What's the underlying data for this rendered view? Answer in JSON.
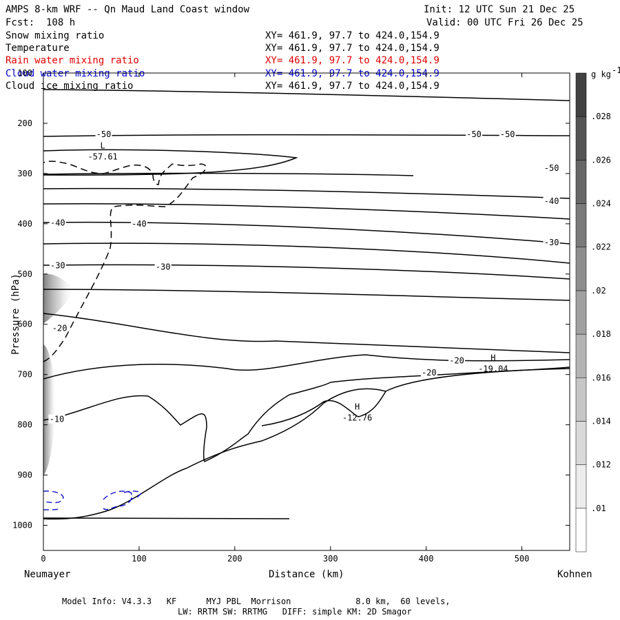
{
  "header": {
    "title": "AMPS 8-km WRF -- Qn Maud Land Coast window",
    "init": "Init: 12 UTC Sun 21 Dec 25",
    "fcst": "Fcst:  108 h",
    "valid": "Valid: 00 UTC Fri 26 Dec 25"
  },
  "fields": [
    {
      "name": "Snow mixing ratio",
      "xy": "XY= 461.9, 97.7 to 424.0,154.9",
      "color": "#000000"
    },
    {
      "name": "Temperature",
      "xy": "XY= 461.9, 97.7 to 424.0,154.9",
      "color": "#000000"
    },
    {
      "name": "Rain water mixing ratio",
      "xy": "XY= 461.9, 97.7 to 424.0,154.9",
      "color": "#e00000"
    },
    {
      "name": "Cloud water mixing ratio",
      "xy": "XY= 461.9, 97.7 to 424.0,154.9",
      "color": "#0000cc"
    },
    {
      "name": "Cloud ice mixing ratio",
      "xy": "XY= 461.9, 97.7 to 424.0,154.9",
      "color": "#000000"
    }
  ],
  "footer": {
    "model": "Model Info: V4.3.3   KF      MYJ PBL  Morrison             8.0 km,  60 levels,",
    "physics": "LW: RRTM SW: RRTMG   DIFF: simple KM: 2D Smagor"
  },
  "chart_data": {
    "type": "contour",
    "xlabel": "Distance (km)",
    "ylabel": "Pressure (hPa)",
    "xlim": [
      0,
      550
    ],
    "ylim": [
      1050,
      100
    ],
    "xticks": [
      0,
      100,
      200,
      300,
      400,
      500
    ],
    "yticks": [
      100,
      200,
      300,
      400,
      500,
      600,
      700,
      800,
      900,
      1000
    ],
    "left_location": "Neumayer",
    "right_location": "Kohnen",
    "colorbar": {
      "unit": "g kg",
      "unit_exp": "-1",
      "ticks": [
        ".01",
        ".012",
        ".014",
        ".016",
        ".018",
        ".02",
        ".022",
        ".024",
        ".026",
        ".028"
      ]
    },
    "contour_labels": [
      {
        "text": "-50",
        "x": 63,
        "p": 222
      },
      {
        "text": "-50",
        "x": 450,
        "p": 222
      },
      {
        "text": "-50",
        "x": 485,
        "p": 222
      },
      {
        "text": "-50",
        "x": 531,
        "p": 289
      },
      {
        "text": "-40",
        "x": 15,
        "p": 398
      },
      {
        "text": "-40",
        "x": 100,
        "p": 400
      },
      {
        "text": "-40",
        "x": 531,
        "p": 355
      },
      {
        "text": "-30",
        "x": 15,
        "p": 483
      },
      {
        "text": "-30",
        "x": 125,
        "p": 486
      },
      {
        "text": "-30",
        "x": 531,
        "p": 437
      },
      {
        "text": "-20",
        "x": 17,
        "p": 608
      },
      {
        "text": "-20",
        "x": 432,
        "p": 672
      },
      {
        "text": "-20",
        "x": 403,
        "p": 696
      },
      {
        "text": "-10",
        "x": 14,
        "p": 789
      }
    ],
    "extrema": [
      {
        "kind": "L",
        "value": "-57.61",
        "x": 62,
        "p": 250
      },
      {
        "kind": "H",
        "value": "-19.04",
        "x": 470,
        "p": 672
      },
      {
        "kind": "H",
        "value": "-12.76",
        "x": 328,
        "p": 770
      }
    ]
  }
}
